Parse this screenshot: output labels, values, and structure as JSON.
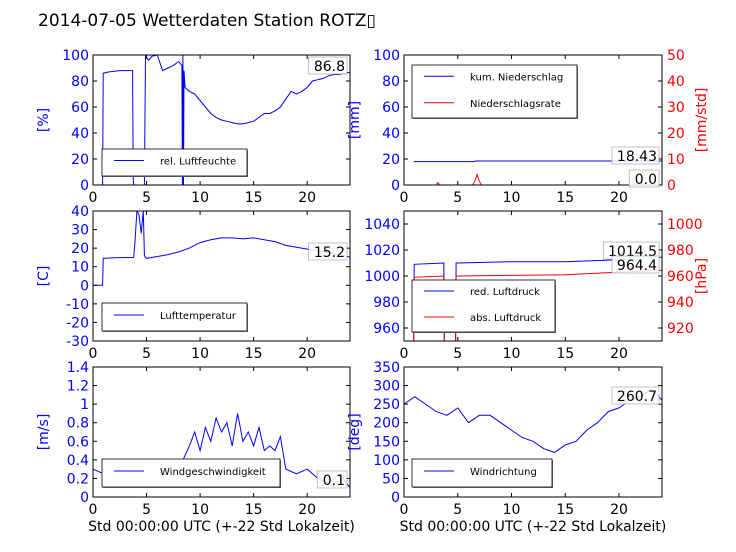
{
  "figure_title": "2014-07-05 Wetterdaten Station ROTZ▯",
  "colors": {
    "blue": "#0000ff",
    "red": "#ff0000",
    "black": "#000000"
  },
  "chart_data": [
    {
      "type": "line",
      "id": "humidity",
      "ylabel": "[%]",
      "xlim": [
        0,
        24
      ],
      "ylim": [
        0,
        100
      ],
      "xticks": [
        0,
        5,
        10,
        15,
        20
      ],
      "yticks": [
        0,
        20,
        40,
        60,
        80,
        100
      ],
      "legend": "bottom-left",
      "readout": "86.8",
      "series": [
        {
          "name": "rel. Luftfeuchte",
          "color": "#0000ff",
          "x": [
            0,
            0.9,
            0.95,
            1.5,
            2.5,
            3.7,
            3.75,
            3.8,
            3.85,
            4.2,
            4.8,
            4.9,
            5.0,
            5.2,
            5.5,
            6.0,
            6.5,
            7.0,
            7.5,
            8.0,
            8.3,
            8.35,
            8.4,
            8.45,
            8.5,
            8.6,
            9.0,
            9.5,
            10.0,
            10.5,
            11.0,
            11.5,
            12.0,
            12.5,
            13.0,
            13.5,
            14.0,
            14.5,
            15.0,
            15.5,
            16.0,
            16.5,
            17.0,
            17.5,
            18.0,
            18.5,
            19.0,
            19.5,
            20.0,
            20.5,
            21.0,
            21.5,
            22.0,
            22.5,
            23.0,
            23.5,
            24.0
          ],
          "y": [
            0,
            0,
            86,
            87,
            88,
            88,
            5,
            0,
            0,
            0,
            0,
            100,
            98,
            96,
            99,
            100,
            88,
            90,
            92,
            95,
            92,
            0,
            100,
            0,
            88,
            75,
            72,
            70,
            65,
            60,
            55,
            52,
            50,
            49,
            48,
            47,
            47,
            48,
            49,
            52,
            55,
            55,
            57,
            60,
            66,
            72,
            70,
            72,
            75,
            80,
            81,
            82,
            84,
            85,
            85,
            86,
            86.8
          ]
        }
      ]
    },
    {
      "type": "line",
      "id": "precipitation",
      "ylabel": "[mm]",
      "ylabel_right": "[mm/std]",
      "xlim": [
        0,
        24
      ],
      "ylim": [
        0,
        100
      ],
      "ylim_right": [
        0,
        50
      ],
      "xticks": [
        0,
        5,
        10,
        15,
        20
      ],
      "yticks": [
        0,
        20,
        40,
        60,
        80,
        100
      ],
      "yticks_right": [
        0,
        10,
        20,
        30,
        40,
        50
      ],
      "legend": "top-left",
      "readouts": [
        "18.43",
        "0.0"
      ],
      "series": [
        {
          "name": "kum. Niederschlag",
          "color": "#0000ff",
          "axis": "left",
          "x": [
            0.9,
            3.0,
            6.5,
            6.7,
            24.0
          ],
          "y": [
            18.0,
            18.0,
            18.0,
            18.43,
            18.43
          ]
        },
        {
          "name": "Niederschlagsrate",
          "color": "#ff0000",
          "axis": "right",
          "x": [
            0.9,
            3.0,
            3.1,
            3.2,
            3.3,
            6.4,
            6.6,
            6.8,
            7.0,
            7.2,
            24.0
          ],
          "y": [
            0,
            0,
            0.8,
            0.8,
            0,
            0,
            1.5,
            4.0,
            1.5,
            0,
            0
          ]
        }
      ]
    },
    {
      "type": "line",
      "id": "temperature",
      "ylabel": "[C]",
      "xlim": [
        0,
        24
      ],
      "ylim": [
        -30,
        40
      ],
      "xticks": [
        0,
        5,
        10,
        15,
        20
      ],
      "yticks": [
        -30,
        -20,
        -10,
        0,
        10,
        20,
        30,
        40
      ],
      "legend": "bottom-left",
      "readout": "15.2",
      "series": [
        {
          "name": "Lufttemperatur",
          "color": "#0000ff",
          "x": [
            0,
            0.9,
            0.95,
            2.0,
            3.8,
            3.9,
            4.1,
            4.3,
            4.5,
            4.7,
            4.8,
            5.0,
            6.0,
            7.0,
            8.0,
            9.0,
            10.0,
            11.0,
            12.0,
            13.0,
            14.0,
            15.0,
            16.0,
            17.0,
            18.0,
            19.0,
            20.0,
            21.0,
            22.0,
            23.0,
            24.0
          ],
          "y": [
            0,
            0,
            14.5,
            14.8,
            15,
            22,
            40,
            38,
            28,
            40,
            16,
            14.5,
            15.5,
            16.5,
            18,
            20,
            23,
            24.5,
            25.5,
            25.5,
            25,
            25.5,
            24.5,
            23.5,
            21.5,
            20.5,
            19.5,
            18.5,
            17.5,
            16.5,
            15.2
          ]
        }
      ]
    },
    {
      "type": "line",
      "id": "pressure",
      "ylabel_right": "[hPa]",
      "xlim": [
        0,
        24
      ],
      "ylim": [
        950,
        1050
      ],
      "ylim_right": [
        910,
        1010
      ],
      "xticks": [
        0,
        5,
        10,
        15,
        20
      ],
      "yticks": [
        960,
        980,
        1000,
        1020,
        1040
      ],
      "yticks_right": [
        920,
        940,
        960,
        980,
        1000
      ],
      "legend": "bottom-left",
      "readouts": [
        "1014.5",
        "964.4"
      ],
      "series": [
        {
          "name": "red. Luftdruck",
          "color": "#0000ff",
          "axis": "left",
          "x": [
            0.9,
            0.95,
            3.7,
            3.75,
            3.8,
            4.8,
            4.85,
            5.0,
            10.0,
            15.0,
            20.0,
            24.0
          ],
          "y": [
            950,
            1009,
            1010,
            950,
            950,
            950,
            1010,
            1010,
            1011,
            1011,
            1012.5,
            1014.5
          ]
        },
        {
          "name": "abs. Luftdruck",
          "color": "#ff0000",
          "axis": "right",
          "x": [
            0.9,
            0.95,
            3.7,
            3.75,
            3.8,
            4.8,
            4.85,
            5.0,
            10.0,
            15.0,
            20.0,
            24.0
          ],
          "y": [
            910,
            959,
            960,
            910,
            910,
            910,
            960,
            960,
            960.5,
            961,
            963,
            964.4
          ]
        }
      ]
    },
    {
      "type": "line",
      "id": "wind-speed",
      "ylabel": "[m/s]",
      "xlim": [
        0,
        24
      ],
      "ylim": [
        0,
        1.4
      ],
      "xticks": [
        0,
        5,
        10,
        15,
        20
      ],
      "yticks": [
        0.0,
        0.2,
        0.4,
        0.6,
        0.8,
        1.0,
        1.2,
        1.4
      ],
      "legend": "bottom-center",
      "readout": "0.1",
      "series": [
        {
          "name": "Windgeschwindigkeit",
          "color": "#0000ff",
          "x": [
            0,
            1,
            2,
            3,
            4,
            5,
            6,
            7,
            8,
            9,
            9.5,
            10,
            10.5,
            11,
            11.5,
            12,
            12.5,
            13,
            13.5,
            14,
            14.5,
            15,
            15.5,
            16,
            16.5,
            17,
            17.5,
            18,
            19,
            20,
            21,
            22,
            23,
            24
          ],
          "y": [
            0.3,
            0.25,
            0.35,
            0.3,
            0.3,
            0.25,
            0.3,
            0.25,
            0.3,
            0.55,
            0.7,
            0.5,
            0.75,
            0.6,
            0.85,
            0.7,
            0.8,
            0.55,
            0.9,
            0.6,
            0.7,
            0.55,
            0.75,
            0.5,
            0.55,
            0.5,
            0.65,
            0.3,
            0.25,
            0.3,
            0.2,
            0.15,
            0.25,
            0.1
          ]
        }
      ]
    },
    {
      "type": "line",
      "id": "wind-direction",
      "ylabel": "[deg]",
      "xlim": [
        0,
        24
      ],
      "ylim": [
        0,
        350
      ],
      "xticks": [
        0,
        5,
        10,
        15,
        20
      ],
      "yticks": [
        0,
        50,
        100,
        150,
        200,
        250,
        300,
        350
      ],
      "legend": "bottom-left",
      "readout": "260.7",
      "series": [
        {
          "name": "Windrichtung",
          "color": "#0000ff",
          "x": [
            0,
            1,
            2,
            3,
            4,
            5,
            6,
            7,
            8,
            9,
            10,
            11,
            12,
            13,
            14,
            15,
            16,
            17,
            18,
            19,
            20,
            21,
            22,
            23,
            24
          ],
          "y": [
            250,
            270,
            250,
            230,
            220,
            240,
            200,
            220,
            220,
            200,
            180,
            160,
            150,
            130,
            120,
            140,
            150,
            180,
            200,
            230,
            240,
            260,
            270,
            290,
            260.7
          ]
        }
      ]
    }
  ],
  "xlabel": "Std 00:00:00 UTC (+-22 Std Lokalzeit)"
}
